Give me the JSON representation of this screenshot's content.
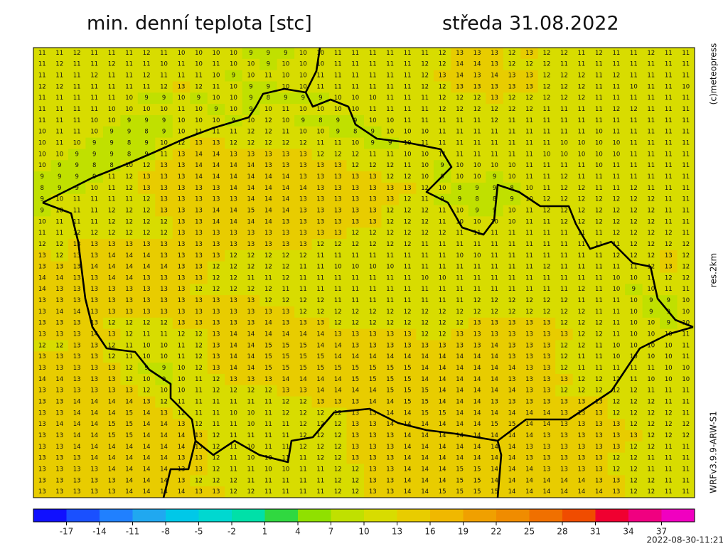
{
  "header": {
    "title": "min. denní teplota [stc]",
    "date": "středa 31.08.2022"
  },
  "side": {
    "copyright": "(c)meteopress",
    "resolution": "res.2km",
    "model": "WRFv3.9.9-ARW-S1"
  },
  "timestamp": "2022-08-30-11:21",
  "colorbar": {
    "lim": [
      -20,
      40
    ],
    "colors": [
      "#1010ff",
      "#1a50ff",
      "#2080ff",
      "#20a8f0",
      "#00c8e8",
      "#00d8d0",
      "#00e0a8",
      "#30d840",
      "#90e000",
      "#c0e000",
      "#d8dc00",
      "#e8cc00",
      "#f0b800",
      "#f0a000",
      "#f08c00",
      "#f07000",
      "#f04c00",
      "#f00030",
      "#f00080",
      "#f000c0"
    ],
    "ticks": [
      -17,
      -14,
      -11,
      -8,
      -5,
      -2,
      1,
      4,
      7,
      10,
      13,
      16,
      19,
      22,
      25,
      28,
      31,
      34,
      37
    ]
  },
  "map": {
    "grid": [
      [
        11,
        11,
        12,
        11,
        11,
        11,
        12,
        11,
        10,
        10,
        10,
        10,
        9,
        9,
        9,
        10,
        10,
        11,
        11,
        11,
        11,
        11,
        11,
        12,
        13,
        13,
        13,
        12,
        13,
        12,
        12,
        11,
        12,
        11,
        11,
        12,
        11,
        11
      ],
      [
        11,
        12,
        11,
        11,
        12,
        11,
        11,
        10,
        11,
        10,
        11,
        10,
        10,
        9,
        10,
        10,
        10,
        11,
        11,
        11,
        11,
        11,
        12,
        12,
        14,
        14,
        13,
        12,
        12,
        12,
        11,
        11,
        11,
        11,
        11,
        11,
        11,
        11
      ],
      [
        11,
        11,
        11,
        12,
        11,
        11,
        12,
        11,
        11,
        11,
        10,
        9,
        10,
        11,
        10,
        10,
        11,
        11,
        11,
        11,
        11,
        11,
        12,
        13,
        14,
        13,
        14,
        13,
        13,
        12,
        12,
        12,
        11,
        12,
        11,
        11,
        11,
        11
      ],
      [
        12,
        12,
        11,
        11,
        11,
        11,
        11,
        12,
        13,
        12,
        11,
        10,
        9,
        9,
        10,
        10,
        11,
        11,
        11,
        11,
        11,
        11,
        12,
        12,
        13,
        13,
        13,
        13,
        13,
        12,
        12,
        12,
        11,
        11,
        10,
        11,
        11,
        10
      ],
      [
        11,
        11,
        11,
        11,
        11,
        10,
        9,
        9,
        10,
        9,
        10,
        10,
        9,
        8,
        9,
        9,
        9,
        10,
        10,
        10,
        11,
        11,
        11,
        12,
        12,
        12,
        13,
        12,
        12,
        12,
        12,
        12,
        11,
        11,
        11,
        11,
        11,
        11
      ],
      [
        11,
        11,
        11,
        11,
        10,
        10,
        10,
        10,
        11,
        10,
        9,
        10,
        9,
        10,
        11,
        10,
        10,
        10,
        10,
        11,
        11,
        11,
        11,
        12,
        12,
        12,
        12,
        12,
        12,
        11,
        11,
        11,
        11,
        12,
        12,
        11,
        11,
        11
      ],
      [
        11,
        11,
        11,
        10,
        10,
        9,
        9,
        9,
        10,
        10,
        10,
        9,
        10,
        12,
        10,
        9,
        8,
        9,
        9,
        10,
        10,
        11,
        11,
        11,
        11,
        11,
        12,
        11,
        11,
        11,
        11,
        11,
        11,
        11,
        11,
        11,
        11,
        11
      ],
      [
        10,
        11,
        11,
        10,
        9,
        9,
        8,
        9,
        10,
        11,
        11,
        11,
        12,
        12,
        11,
        10,
        10,
        9,
        8,
        9,
        10,
        10,
        10,
        11,
        11,
        11,
        11,
        11,
        11,
        11,
        11,
        11,
        10,
        11,
        11,
        11,
        11,
        11
      ],
      [
        10,
        11,
        10,
        9,
        9,
        8,
        9,
        10,
        12,
        13,
        13,
        12,
        12,
        12,
        12,
        12,
        11,
        11,
        10,
        9,
        9,
        10,
        11,
        11,
        11,
        11,
        11,
        11,
        11,
        11,
        10,
        10,
        10,
        10,
        11,
        11,
        11,
        11
      ],
      [
        10,
        10,
        9,
        9,
        9,
        8,
        9,
        11,
        13,
        14,
        14,
        13,
        13,
        13,
        13,
        13,
        12,
        12,
        12,
        11,
        11,
        10,
        10,
        11,
        11,
        11,
        11,
        11,
        11,
        10,
        10,
        10,
        10,
        10,
        11,
        11,
        11,
        11
      ],
      [
        10,
        9,
        9,
        8,
        8,
        10,
        12,
        13,
        13,
        14,
        14,
        14,
        14,
        13,
        13,
        13,
        13,
        13,
        12,
        12,
        12,
        11,
        10,
        9,
        10,
        10,
        10,
        10,
        11,
        11,
        11,
        11,
        10,
        11,
        11,
        11,
        11,
        11
      ],
      [
        9,
        9,
        9,
        9,
        11,
        12,
        13,
        13,
        13,
        14,
        14,
        14,
        14,
        14,
        14,
        13,
        13,
        13,
        13,
        13,
        12,
        12,
        10,
        9,
        10,
        10,
        9,
        10,
        11,
        11,
        12,
        11,
        11,
        11,
        11,
        11,
        11,
        11
      ],
      [
        8,
        9,
        9,
        10,
        11,
        12,
        13,
        13,
        13,
        13,
        13,
        14,
        14,
        14,
        14,
        14,
        13,
        13,
        13,
        13,
        13,
        13,
        12,
        10,
        8,
        9,
        9,
        8,
        10,
        11,
        12,
        12,
        11,
        11,
        12,
        11,
        11,
        11
      ],
      [
        9,
        10,
        11,
        11,
        11,
        11,
        12,
        13,
        13,
        13,
        13,
        13,
        14,
        14,
        14,
        13,
        13,
        13,
        13,
        13,
        13,
        12,
        11,
        9,
        9,
        8,
        8,
        9,
        10,
        12,
        12,
        12,
        12,
        12,
        12,
        12,
        11,
        11
      ],
      [
        9,
        10,
        11,
        11,
        12,
        12,
        12,
        13,
        13,
        13,
        14,
        14,
        15,
        14,
        14,
        13,
        13,
        13,
        13,
        13,
        12,
        12,
        12,
        11,
        10,
        9,
        9,
        10,
        11,
        12,
        12,
        12,
        12,
        12,
        12,
        12,
        11,
        11
      ],
      [
        10,
        11,
        11,
        11,
        12,
        12,
        12,
        12,
        13,
        13,
        14,
        14,
        14,
        14,
        13,
        13,
        13,
        13,
        13,
        13,
        12,
        12,
        12,
        11,
        10,
        10,
        10,
        10,
        11,
        11,
        12,
        12,
        12,
        12,
        12,
        12,
        11,
        11
      ],
      [
        11,
        11,
        12,
        12,
        12,
        12,
        12,
        12,
        13,
        13,
        13,
        13,
        13,
        13,
        13,
        13,
        13,
        13,
        12,
        12,
        12,
        12,
        12,
        12,
        11,
        11,
        11,
        11,
        11,
        11,
        11,
        11,
        11,
        12,
        12,
        12,
        12,
        11
      ],
      [
        12,
        12,
        13,
        13,
        13,
        13,
        13,
        13,
        13,
        13,
        13,
        13,
        13,
        13,
        13,
        13,
        12,
        12,
        12,
        12,
        12,
        12,
        11,
        11,
        11,
        11,
        11,
        11,
        11,
        11,
        11,
        11,
        11,
        11,
        12,
        12,
        12,
        12
      ],
      [
        13,
        12,
        13,
        13,
        14,
        14,
        14,
        13,
        13,
        13,
        13,
        12,
        12,
        12,
        12,
        12,
        11,
        11,
        11,
        11,
        11,
        11,
        11,
        11,
        10,
        10,
        11,
        11,
        11,
        11,
        11,
        11,
        11,
        12,
        12,
        12,
        13,
        12
      ],
      [
        13,
        13,
        13,
        14,
        14,
        14,
        14,
        14,
        13,
        13,
        12,
        12,
        12,
        12,
        12,
        11,
        11,
        10,
        10,
        10,
        10,
        11,
        11,
        11,
        11,
        11,
        11,
        11,
        11,
        12,
        11,
        11,
        11,
        11,
        11,
        12,
        13,
        12
      ],
      [
        14,
        14,
        13,
        13,
        14,
        14,
        13,
        13,
        13,
        13,
        12,
        12,
        11,
        11,
        12,
        11,
        11,
        11,
        11,
        11,
        11,
        11,
        10,
        10,
        11,
        11,
        11,
        11,
        11,
        11,
        11,
        11,
        11,
        10,
        10,
        11,
        12,
        12
      ],
      [
        14,
        13,
        13,
        13,
        13,
        13,
        13,
        13,
        13,
        12,
        12,
        12,
        12,
        12,
        11,
        11,
        11,
        11,
        11,
        11,
        11,
        11,
        11,
        11,
        11,
        11,
        11,
        11,
        11,
        11,
        11,
        12,
        11,
        10,
        9,
        10,
        11,
        11
      ],
      [
        13,
        13,
        13,
        13,
        13,
        13,
        13,
        13,
        13,
        13,
        13,
        13,
        13,
        12,
        12,
        12,
        12,
        11,
        11,
        11,
        11,
        11,
        11,
        11,
        11,
        12,
        12,
        12,
        12,
        12,
        12,
        11,
        11,
        11,
        10,
        9,
        9,
        10
      ],
      [
        13,
        14,
        14,
        13,
        13,
        13,
        13,
        13,
        13,
        13,
        13,
        13,
        13,
        13,
        13,
        12,
        12,
        12,
        12,
        12,
        12,
        12,
        12,
        12,
        12,
        12,
        12,
        12,
        12,
        12,
        12,
        12,
        11,
        11,
        10,
        9,
        9,
        10
      ],
      [
        13,
        13,
        13,
        13,
        12,
        12,
        12,
        12,
        13,
        13,
        13,
        13,
        13,
        14,
        13,
        13,
        13,
        12,
        12,
        12,
        12,
        12,
        12,
        12,
        12,
        13,
        13,
        13,
        13,
        13,
        12,
        12,
        12,
        11,
        10,
        10,
        9,
        10
      ],
      [
        13,
        13,
        13,
        14,
        13,
        12,
        11,
        11,
        12,
        12,
        13,
        14,
        14,
        14,
        14,
        14,
        14,
        13,
        13,
        13,
        13,
        13,
        12,
        12,
        13,
        13,
        13,
        13,
        13,
        13,
        13,
        12,
        12,
        11,
        10,
        10,
        10,
        11
      ],
      [
        12,
        12,
        13,
        13,
        12,
        11,
        10,
        10,
        11,
        12,
        13,
        14,
        14,
        15,
        15,
        15,
        14,
        14,
        13,
        13,
        13,
        13,
        13,
        13,
        13,
        13,
        14,
        13,
        13,
        13,
        12,
        12,
        11,
        10,
        10,
        10,
        10,
        11
      ],
      [
        13,
        13,
        13,
        13,
        12,
        11,
        10,
        10,
        11,
        12,
        13,
        14,
        14,
        15,
        15,
        15,
        15,
        14,
        14,
        14,
        14,
        14,
        14,
        14,
        14,
        14,
        14,
        13,
        13,
        13,
        12,
        11,
        11,
        10,
        10,
        10,
        10,
        11
      ],
      [
        13,
        13,
        13,
        13,
        13,
        12,
        9,
        9,
        10,
        12,
        13,
        14,
        14,
        15,
        15,
        15,
        15,
        15,
        15,
        15,
        15,
        15,
        14,
        14,
        14,
        14,
        14,
        14,
        13,
        13,
        12,
        11,
        11,
        11,
        11,
        11,
        10,
        10
      ],
      [
        14,
        14,
        13,
        13,
        13,
        12,
        10,
        9,
        10,
        11,
        12,
        13,
        13,
        13,
        14,
        14,
        14,
        14,
        15,
        15,
        15,
        15,
        14,
        14,
        14,
        14,
        14,
        13,
        13,
        13,
        13,
        12,
        12,
        12,
        11,
        10,
        10,
        10
      ],
      [
        13,
        13,
        13,
        13,
        13,
        13,
        12,
        10,
        10,
        11,
        12,
        12,
        12,
        12,
        13,
        13,
        14,
        14,
        14,
        14,
        15,
        15,
        15,
        14,
        14,
        14,
        14,
        14,
        13,
        13,
        12,
        12,
        12,
        12,
        12,
        11,
        11,
        11
      ],
      [
        13,
        13,
        14,
        14,
        14,
        14,
        13,
        12,
        11,
        11,
        11,
        11,
        11,
        11,
        12,
        12,
        13,
        13,
        13,
        14,
        14,
        15,
        15,
        14,
        14,
        14,
        13,
        13,
        13,
        13,
        13,
        13,
        13,
        12,
        12,
        12,
        11,
        11
      ],
      [
        13,
        13,
        14,
        14,
        14,
        15,
        14,
        13,
        12,
        11,
        11,
        10,
        10,
        11,
        12,
        12,
        12,
        12,
        13,
        13,
        14,
        14,
        15,
        15,
        14,
        14,
        14,
        14,
        14,
        14,
        13,
        13,
        13,
        12,
        12,
        12,
        12,
        11
      ],
      [
        13,
        14,
        14,
        14,
        15,
        15,
        14,
        14,
        13,
        12,
        11,
        11,
        10,
        11,
        11,
        12,
        12,
        12,
        13,
        13,
        14,
        14,
        14,
        14,
        14,
        14,
        15,
        15,
        14,
        14,
        13,
        13,
        13,
        13,
        12,
        12,
        12,
        12
      ],
      [
        13,
        13,
        14,
        14,
        15,
        15,
        14,
        14,
        14,
        13,
        12,
        11,
        11,
        11,
        11,
        12,
        12,
        12,
        13,
        13,
        13,
        14,
        14,
        14,
        14,
        14,
        14,
        14,
        14,
        13,
        13,
        13,
        13,
        13,
        13,
        12,
        12,
        12
      ],
      [
        13,
        13,
        14,
        14,
        14,
        14,
        14,
        14,
        14,
        13,
        12,
        11,
        10,
        11,
        11,
        12,
        12,
        12,
        13,
        13,
        13,
        14,
        14,
        14,
        14,
        14,
        14,
        14,
        13,
        13,
        13,
        13,
        13,
        13,
        12,
        12,
        11,
        11
      ],
      [
        13,
        13,
        13,
        14,
        14,
        14,
        14,
        14,
        13,
        13,
        12,
        11,
        10,
        10,
        11,
        11,
        12,
        12,
        13,
        13,
        13,
        14,
        14,
        14,
        14,
        14,
        14,
        14,
        13,
        13,
        13,
        13,
        13,
        12,
        12,
        11,
        11,
        11
      ],
      [
        13,
        13,
        13,
        13,
        14,
        14,
        14,
        14,
        13,
        13,
        12,
        11,
        11,
        10,
        10,
        11,
        11,
        12,
        12,
        13,
        13,
        14,
        14,
        14,
        15,
        15,
        14,
        14,
        14,
        13,
        13,
        13,
        13,
        12,
        12,
        11,
        11,
        11
      ],
      [
        13,
        13,
        13,
        13,
        13,
        14,
        14,
        14,
        13,
        12,
        12,
        12,
        11,
        11,
        11,
        11,
        11,
        12,
        12,
        13,
        13,
        14,
        14,
        14,
        15,
        15,
        14,
        14,
        14,
        14,
        14,
        14,
        13,
        13,
        12,
        12,
        11,
        11
      ],
      [
        13,
        13,
        13,
        13,
        13,
        14,
        14,
        14,
        14,
        13,
        13,
        12,
        12,
        11,
        11,
        11,
        11,
        12,
        12,
        13,
        13,
        14,
        14,
        15,
        15,
        15,
        15,
        14,
        14,
        14,
        14,
        14,
        14,
        13,
        12,
        12,
        11,
        11
      ]
    ]
  }
}
